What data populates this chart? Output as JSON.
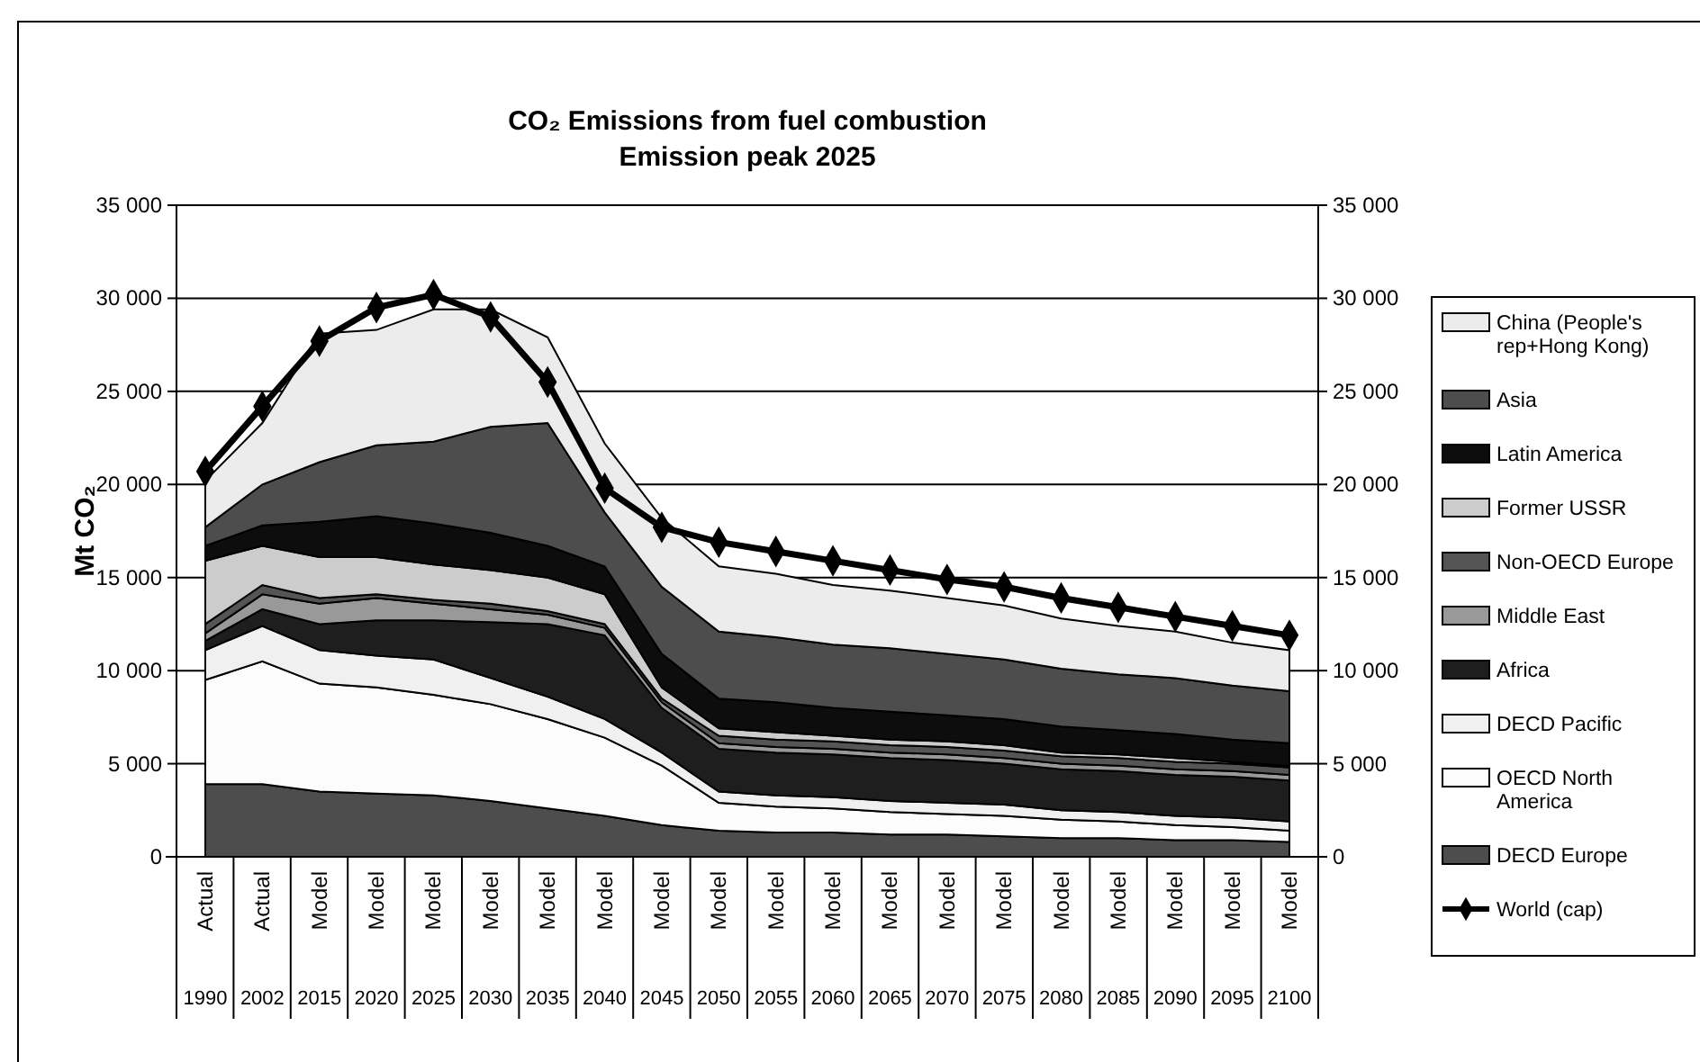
{
  "chart_data": {
    "type": "area",
    "title": "CO₂ Emissions from fuel combustion",
    "subtitle": "Emission peak 2025",
    "ylabel": "Mt CO₂",
    "categories": [
      "Actual 1990",
      "Actual 2002",
      "Model 2015",
      "Model 2020",
      "Model 2025",
      "Model 2030",
      "Model 2035",
      "Model 2040",
      "Model 2045",
      "Model 2050",
      "Model 2055",
      "Model 2060",
      "Model 2065",
      "Model 2070",
      "Model 2075",
      "Model 2080",
      "Model 2085",
      "Model 2090",
      "Model 2095",
      "Model 2100"
    ],
    "stacked": true,
    "grid": "y",
    "legend": "right",
    "ylim": [
      0,
      35000
    ],
    "yticks": [
      0,
      {
        "value": 5000,
        "label": "5 000"
      },
      {
        "value": 10000,
        "label": "10 000"
      },
      {
        "value": 15000,
        "label": "15 000"
      },
      {
        "value": 20000,
        "label": "20 000"
      },
      {
        "value": 25000,
        "label": "25 000"
      },
      {
        "value": 30000,
        "label": "30 000"
      },
      {
        "value": 35000,
        "label": "35 000"
      }
    ],
    "y2lim": [
      0,
      35000
    ],
    "y2ticks": [
      0,
      {
        "value": 5000,
        "label": "5 000"
      },
      {
        "value": 10000,
        "label": "10 000"
      },
      {
        "value": 15000,
        "label": "15 000"
      },
      {
        "value": 20000,
        "label": "20 000"
      },
      {
        "value": 25000,
        "label": "25 000"
      },
      {
        "value": 30000,
        "label": "30 000"
      },
      {
        "value": 35000,
        "label": "35 000"
      }
    ],
    "series": [
      {
        "name": "DECD Europe",
        "color": "#4d4d4d",
        "values": [
          3900,
          3900,
          3500,
          3400,
          3300,
          3000,
          2600,
          2200,
          1700,
          1400,
          1300,
          1300,
          1200,
          1200,
          1100,
          1000,
          1000,
          900,
          900,
          800
        ]
      },
      {
        "name": "OECD North America",
        "color": "#fcfcfc",
        "values": [
          5600,
          6600,
          5800,
          5700,
          5400,
          5200,
          4800,
          4200,
          3200,
          1500,
          1400,
          1300,
          1200,
          1100,
          1100,
          1000,
          900,
          800,
          700,
          600
        ]
      },
      {
        "name": "DECD Pacific",
        "color": "#f0f0f0",
        "values": [
          1600,
          1900,
          1800,
          1700,
          1900,
          1400,
          1200,
          1000,
          700,
          600,
          600,
          600,
          600,
          600,
          600,
          500,
          500,
          500,
          500,
          500
        ]
      },
      {
        "name": "Africa",
        "color": "#1e1e1e",
        "values": [
          500,
          900,
          1400,
          1900,
          2100,
          3000,
          3900,
          4500,
          2400,
          2300,
          2300,
          2300,
          2300,
          2300,
          2200,
          2200,
          2200,
          2200,
          2200,
          2200
        ]
      },
      {
        "name": "Middle East",
        "color": "#999999",
        "values": [
          400,
          800,
          1100,
          1200,
          900,
          700,
          500,
          400,
          300,
          300,
          300,
          300,
          300,
          300,
          300,
          300,
          300,
          300,
          300,
          300
        ]
      },
      {
        "name": "Non-OECD Europe",
        "color": "#555555",
        "values": [
          500,
          500,
          300,
          200,
          200,
          300,
          200,
          200,
          200,
          400,
          400,
          400,
          400,
          400,
          400,
          400,
          400,
          400,
          400,
          400
        ]
      },
      {
        "name": "Former USSR",
        "color": "#cccccc",
        "values": [
          3400,
          2100,
          2200,
          2000,
          1900,
          1800,
          1800,
          1600,
          600,
          400,
          400,
          300,
          300,
          300,
          300,
          200,
          200,
          200,
          100,
          100
        ]
      },
      {
        "name": "Latin America",
        "color": "#0d0d0d",
        "values": [
          800,
          1100,
          1900,
          2200,
          2200,
          2000,
          1700,
          1500,
          1800,
          1600,
          1600,
          1500,
          1500,
          1400,
          1400,
          1400,
          1300,
          1300,
          1200,
          1200
        ]
      },
      {
        "name": "Asia",
        "color": "#4d4d4d",
        "values": [
          1000,
          2200,
          3200,
          3800,
          4400,
          5700,
          6600,
          2900,
          3600,
          3600,
          3500,
          3400,
          3400,
          3300,
          3200,
          3100,
          3000,
          3000,
          2900,
          2800
        ]
      },
      {
        "name": "China (People's rep+Hong Kong)",
        "color": "#ececec",
        "values": [
          2500,
          3300,
          6900,
          6200,
          7100,
          6300,
          4600,
          3700,
          3700,
          3500,
          3400,
          3200,
          3100,
          3000,
          2900,
          2700,
          2600,
          2500,
          2300,
          2200
        ]
      },
      {
        "name": "World (cap)",
        "type": "line",
        "color": "#000000",
        "marker": "diamond",
        "line_style": "solid",
        "values": [
          20700,
          24200,
          27700,
          29500,
          30200,
          29000,
          25500,
          19800,
          17700,
          16900,
          16400,
          15900,
          15400,
          14900,
          14500,
          13900,
          13400,
          12900,
          12400,
          11900
        ]
      }
    ]
  }
}
